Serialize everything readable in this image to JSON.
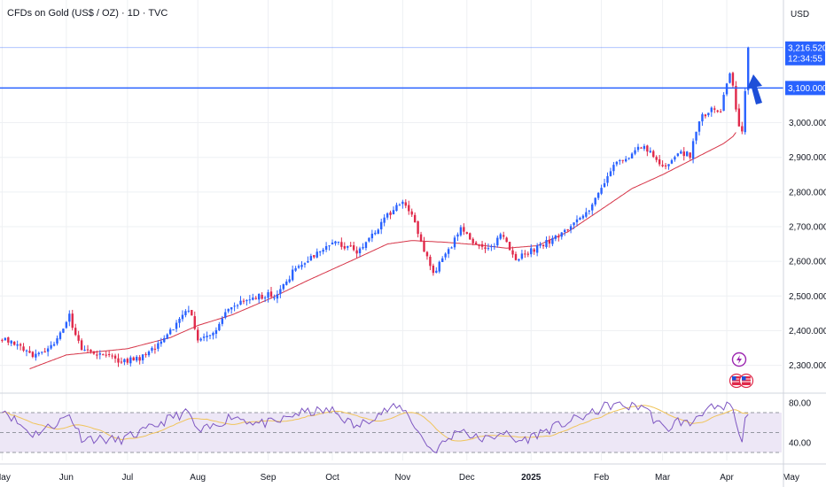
{
  "header": {
    "title": "CFDs on Gold (US$ / OZ) · 1D · TVC"
  },
  "currency": "USD",
  "price_tags": {
    "last_price": "3,216.520",
    "countdown": "12:34:55",
    "level_label": "3,100.000"
  },
  "colors": {
    "up": "#2962ff",
    "down": "#e0294a",
    "ma": "#d63447",
    "level": "#2962ff",
    "rsi": "#7e57c2",
    "rsi_ma": "#f0c45a",
    "rsi_band": "#ede7f6",
    "grid": "#eef0f3",
    "text": "#131722",
    "arrow": "#1e4fd8"
  },
  "chart_data": [
    {
      "type": "candlestick",
      "title": "CFDs on Gold (US$ / OZ) · 1D · TVC",
      "price_axis": {
        "unit": "USD",
        "scale": "linear",
        "range": [
          2230,
          3290
        ],
        "tick_labels": [
          "3,000.000",
          "2,900.000",
          "2,800.000",
          "2,700.000",
          "2,600.000",
          "2,500.000",
          "2,400.000",
          "2,300.000"
        ],
        "tick_values": [
          3000,
          2900,
          2800,
          2700,
          2600,
          2500,
          2400,
          2300
        ]
      },
      "time_axis": {
        "labels": [
          "May",
          "Jun",
          "Jul",
          "Aug",
          "Sep",
          "Oct",
          "Nov",
          "Dec",
          "2025",
          "Feb",
          "Mar",
          "Apr",
          "May"
        ],
        "bold_labels": [
          "2025"
        ],
        "label_day_index": [
          0,
          21,
          41,
          64,
          87,
          108,
          131,
          152,
          173,
          196,
          216,
          237,
          258
        ],
        "start_date": "2024-04-16",
        "end_date": "2025-05-02"
      },
      "horizontal_level": {
        "value": 3100,
        "label": "3,100.000"
      },
      "last_price": {
        "value": 3216.52,
        "label": "3,216.520",
        "countdown": "12:34:55"
      },
      "moving_average_anchors": [
        {
          "day": 9,
          "value": 2290
        },
        {
          "day": 21,
          "value": 2330
        },
        {
          "day": 41,
          "value": 2348
        },
        {
          "day": 55,
          "value": 2380
        },
        {
          "day": 64,
          "value": 2415
        },
        {
          "day": 75,
          "value": 2445
        },
        {
          "day": 87,
          "value": 2490
        },
        {
          "day": 100,
          "value": 2545
        },
        {
          "day": 115,
          "value": 2605
        },
        {
          "day": 126,
          "value": 2650
        },
        {
          "day": 134,
          "value": 2660
        },
        {
          "day": 145,
          "value": 2655
        },
        {
          "day": 155,
          "value": 2648
        },
        {
          "day": 165,
          "value": 2638
        },
        {
          "day": 175,
          "value": 2645
        },
        {
          "day": 185,
          "value": 2685
        },
        {
          "day": 196,
          "value": 2750
        },
        {
          "day": 206,
          "value": 2810
        },
        {
          "day": 216,
          "value": 2850
        },
        {
          "day": 226,
          "value": 2895
        },
        {
          "day": 236,
          "value": 2940
        },
        {
          "day": 239,
          "value": 2960
        },
        {
          "day": 240,
          "value": 2972
        }
      ],
      "close_anchors": [
        {
          "day": 0,
          "value": 2380
        },
        {
          "day": 5,
          "value": 2365
        },
        {
          "day": 10,
          "value": 2320
        },
        {
          "day": 17,
          "value": 2355
        },
        {
          "day": 22,
          "value": 2440
        },
        {
          "day": 26,
          "value": 2345
        },
        {
          "day": 34,
          "value": 2330
        },
        {
          "day": 38,
          "value": 2310
        },
        {
          "day": 47,
          "value": 2325
        },
        {
          "day": 56,
          "value": 2410
        },
        {
          "day": 61,
          "value": 2465
        },
        {
          "day": 64,
          "value": 2380
        },
        {
          "day": 70,
          "value": 2400
        },
        {
          "day": 75,
          "value": 2475
        },
        {
          "day": 84,
          "value": 2500
        },
        {
          "day": 90,
          "value": 2505
        },
        {
          "day": 96,
          "value": 2580
        },
        {
          "day": 102,
          "value": 2620
        },
        {
          "day": 108,
          "value": 2660
        },
        {
          "day": 116,
          "value": 2630
        },
        {
          "day": 121,
          "value": 2680
        },
        {
          "day": 127,
          "value": 2740
        },
        {
          "day": 131,
          "value": 2775
        },
        {
          "day": 134,
          "value": 2740
        },
        {
          "day": 137,
          "value": 2655
        },
        {
          "day": 141,
          "value": 2570
        },
        {
          "day": 147,
          "value": 2640
        },
        {
          "day": 150,
          "value": 2705
        },
        {
          "day": 154,
          "value": 2650
        },
        {
          "day": 160,
          "value": 2635
        },
        {
          "day": 163,
          "value": 2685
        },
        {
          "day": 168,
          "value": 2610
        },
        {
          "day": 172,
          "value": 2625
        },
        {
          "day": 176,
          "value": 2645
        },
        {
          "day": 182,
          "value": 2670
        },
        {
          "day": 188,
          "value": 2715
        },
        {
          "day": 193,
          "value": 2765
        },
        {
          "day": 197,
          "value": 2830
        },
        {
          "day": 200,
          "value": 2880
        },
        {
          "day": 205,
          "value": 2905
        },
        {
          "day": 210,
          "value": 2935
        },
        {
          "day": 213,
          "value": 2900
        },
        {
          "day": 217,
          "value": 2870
        },
        {
          "day": 221,
          "value": 2920
        },
        {
          "day": 225,
          "value": 2905
        },
        {
          "day": 228,
          "value": 3010
        },
        {
          "day": 232,
          "value": 3040
        },
        {
          "day": 235,
          "value": 3030
        },
        {
          "day": 236,
          "value": 3080
        },
        {
          "day": 238,
          "value": 3135
        },
        {
          "day": 239,
          "value": 3110
        },
        {
          "day": 240,
          "value": 3040
        },
        {
          "day": 241,
          "value": 2985
        },
        {
          "day": 242,
          "value": 2970
        },
        {
          "day": 243,
          "value": 3085
        },
        {
          "day": 244,
          "value": 3216.52
        }
      ]
    },
    {
      "type": "line",
      "name": "RSI",
      "y_axis": {
        "tick_labels": [
          "80.00",
          "40.00"
        ],
        "tick_values": [
          80,
          40
        ],
        "range": [
          22,
          86
        ]
      },
      "band": [
        30,
        70
      ],
      "reference_lines": [
        30,
        50,
        70
      ],
      "rsi_anchors": [
        {
          "day": 0,
          "value": 75
        },
        {
          "day": 5,
          "value": 60
        },
        {
          "day": 10,
          "value": 48
        },
        {
          "day": 17,
          "value": 58
        },
        {
          "day": 22,
          "value": 68
        },
        {
          "day": 26,
          "value": 45
        },
        {
          "day": 34,
          "value": 43
        },
        {
          "day": 38,
          "value": 42
        },
        {
          "day": 47,
          "value": 52
        },
        {
          "day": 56,
          "value": 66
        },
        {
          "day": 61,
          "value": 70
        },
        {
          "day": 64,
          "value": 50
        },
        {
          "day": 70,
          "value": 57
        },
        {
          "day": 75,
          "value": 67
        },
        {
          "day": 84,
          "value": 59
        },
        {
          "day": 90,
          "value": 60
        },
        {
          "day": 96,
          "value": 69
        },
        {
          "day": 102,
          "value": 71
        },
        {
          "day": 108,
          "value": 72
        },
        {
          "day": 116,
          "value": 55
        },
        {
          "day": 121,
          "value": 66
        },
        {
          "day": 127,
          "value": 74
        },
        {
          "day": 131,
          "value": 75
        },
        {
          "day": 134,
          "value": 62
        },
        {
          "day": 137,
          "value": 46
        },
        {
          "day": 141,
          "value": 31
        },
        {
          "day": 147,
          "value": 46
        },
        {
          "day": 150,
          "value": 55
        },
        {
          "day": 154,
          "value": 45
        },
        {
          "day": 160,
          "value": 43
        },
        {
          "day": 163,
          "value": 52
        },
        {
          "day": 168,
          "value": 41
        },
        {
          "day": 172,
          "value": 44
        },
        {
          "day": 176,
          "value": 50
        },
        {
          "day": 182,
          "value": 57
        },
        {
          "day": 188,
          "value": 64
        },
        {
          "day": 193,
          "value": 69
        },
        {
          "day": 197,
          "value": 76
        },
        {
          "day": 200,
          "value": 78
        },
        {
          "day": 205,
          "value": 76
        },
        {
          "day": 210,
          "value": 77
        },
        {
          "day": 213,
          "value": 64
        },
        {
          "day": 217,
          "value": 52
        },
        {
          "day": 221,
          "value": 62
        },
        {
          "day": 225,
          "value": 58
        },
        {
          "day": 228,
          "value": 70
        },
        {
          "day": 232,
          "value": 74
        },
        {
          "day": 235,
          "value": 72
        },
        {
          "day": 236,
          "value": 74
        },
        {
          "day": 238,
          "value": 79
        },
        {
          "day": 239,
          "value": 72
        },
        {
          "day": 240,
          "value": 58
        },
        {
          "day": 241,
          "value": 45
        },
        {
          "day": 242,
          "value": 44
        },
        {
          "day": 243,
          "value": 61
        },
        {
          "day": 244,
          "value": 73
        }
      ]
    }
  ]
}
